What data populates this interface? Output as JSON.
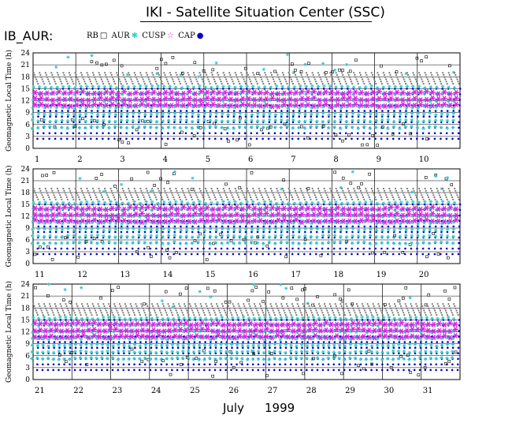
{
  "header": {
    "title": "IKI - Satellite Situation Center (SSC)",
    "region_label": "IB_AUR:"
  },
  "legend": [
    {
      "label": "RB",
      "marker": "square",
      "color": "#000000"
    },
    {
      "label": "AUR",
      "marker": "star",
      "color": "#33cccc"
    },
    {
      "label": "CUSP",
      "marker": "star",
      "color": "#e020e0"
    },
    {
      "label": "CAP",
      "marker": "dot",
      "color": "#0000cc"
    }
  ],
  "footer": {
    "month": "July",
    "year": "1999"
  },
  "colors": {
    "rb": "#000000",
    "aur": "#33cccc",
    "cusp": "#e020e0",
    "cap": "#0000cc",
    "gray": "#777777"
  },
  "chart_data": {
    "type": "scatter",
    "title": "IKI - Satellite Situation Center (SSC)",
    "ylabel": "Geomagnetic Local Time (h)",
    "xlabel": "July 1999",
    "ylim": [
      0,
      24
    ],
    "yticks": [
      0,
      3,
      6,
      9,
      12,
      15,
      18,
      21,
      24
    ],
    "series": [
      "RB",
      "AUR",
      "CUSP",
      "CAP"
    ],
    "panels": [
      {
        "days": [
          "1",
          "2",
          "3",
          "4",
          "5",
          "6",
          "7",
          "8",
          "9",
          "10"
        ],
        "day_span": [
          1,
          11
        ]
      },
      {
        "days": [
          "11",
          "12",
          "13",
          "14",
          "15",
          "16",
          "17",
          "18",
          "19",
          "20"
        ],
        "day_span": [
          11,
          21
        ]
      },
      {
        "days": [
          "21",
          "22",
          "23",
          "24",
          "25",
          "26",
          "27",
          "28",
          "29",
          "30",
          "31"
        ],
        "day_span": [
          21,
          32
        ]
      }
    ],
    "pattern": {
      "cusp_band": [
        9,
        15.5
      ],
      "aur_band": [
        5,
        17
      ],
      "gray_band": [
        16,
        19
      ],
      "cap_band": [
        0,
        15
      ],
      "passes_per_day": 7.2
    }
  }
}
